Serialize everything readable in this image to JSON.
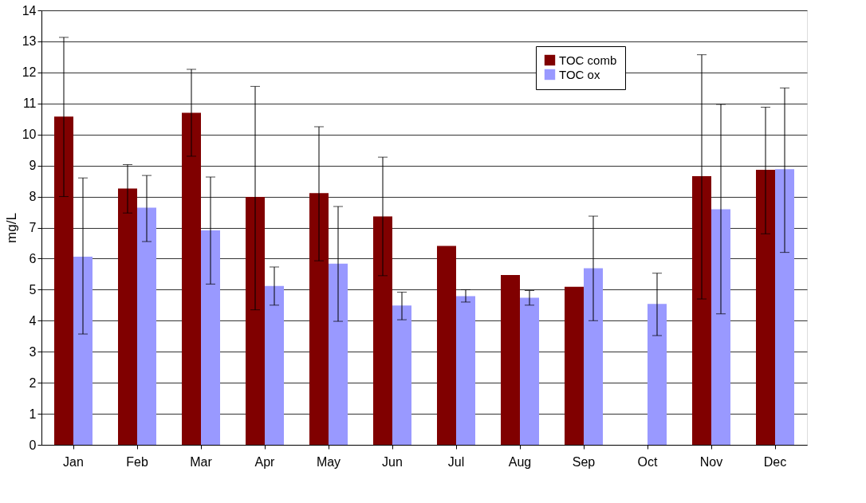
{
  "chart_data": {
    "type": "bar",
    "ylabel": "mg/L",
    "categories": [
      "Jan",
      "Feb",
      "Mar",
      "Apr",
      "May",
      "Jun",
      "Jul",
      "Aug",
      "Sep",
      "Oct",
      "Nov",
      "Dec"
    ],
    "series": [
      {
        "name": "TOC comb",
        "color": "#800000",
        "values": [
          10.58,
          8.26,
          10.7,
          7.99,
          8.11,
          7.36,
          6.41,
          5.47,
          5.09,
          null,
          8.66,
          8.86
        ],
        "errors": [
          [
            8.0,
            13.13
          ],
          [
            7.47,
            9.03
          ],
          [
            9.3,
            12.1
          ],
          [
            4.35,
            11.55
          ],
          [
            5.93,
            10.25
          ],
          [
            5.45,
            9.27
          ],
          null,
          null,
          null,
          null,
          [
            4.7,
            12.57
          ],
          [
            6.8,
            10.88
          ]
        ]
      },
      {
        "name": "TOC ox",
        "color": "#9999ff",
        "values": [
          6.06,
          7.64,
          6.91,
          5.12,
          5.84,
          4.49,
          4.79,
          4.74,
          5.69,
          4.54,
          7.59,
          8.88
        ],
        "errors": [
          [
            3.57,
            8.6
          ],
          [
            6.55,
            8.68
          ],
          [
            5.18,
            8.63
          ],
          [
            4.5,
            5.73
          ],
          [
            3.98,
            7.68
          ],
          [
            4.03,
            4.92
          ],
          [
            4.6,
            5.0
          ],
          [
            4.5,
            4.97
          ],
          [
            4.0,
            7.37
          ],
          [
            3.52,
            5.53
          ],
          [
            4.22,
            10.97
          ],
          [
            6.2,
            11.5
          ]
        ]
      }
    ],
    "ylim": [
      0,
      14
    ],
    "yticks": [
      0,
      1,
      2,
      3,
      4,
      5,
      6,
      7,
      8,
      9,
      10,
      11,
      12,
      13,
      14
    ],
    "grid": "y",
    "legend": "top right"
  }
}
